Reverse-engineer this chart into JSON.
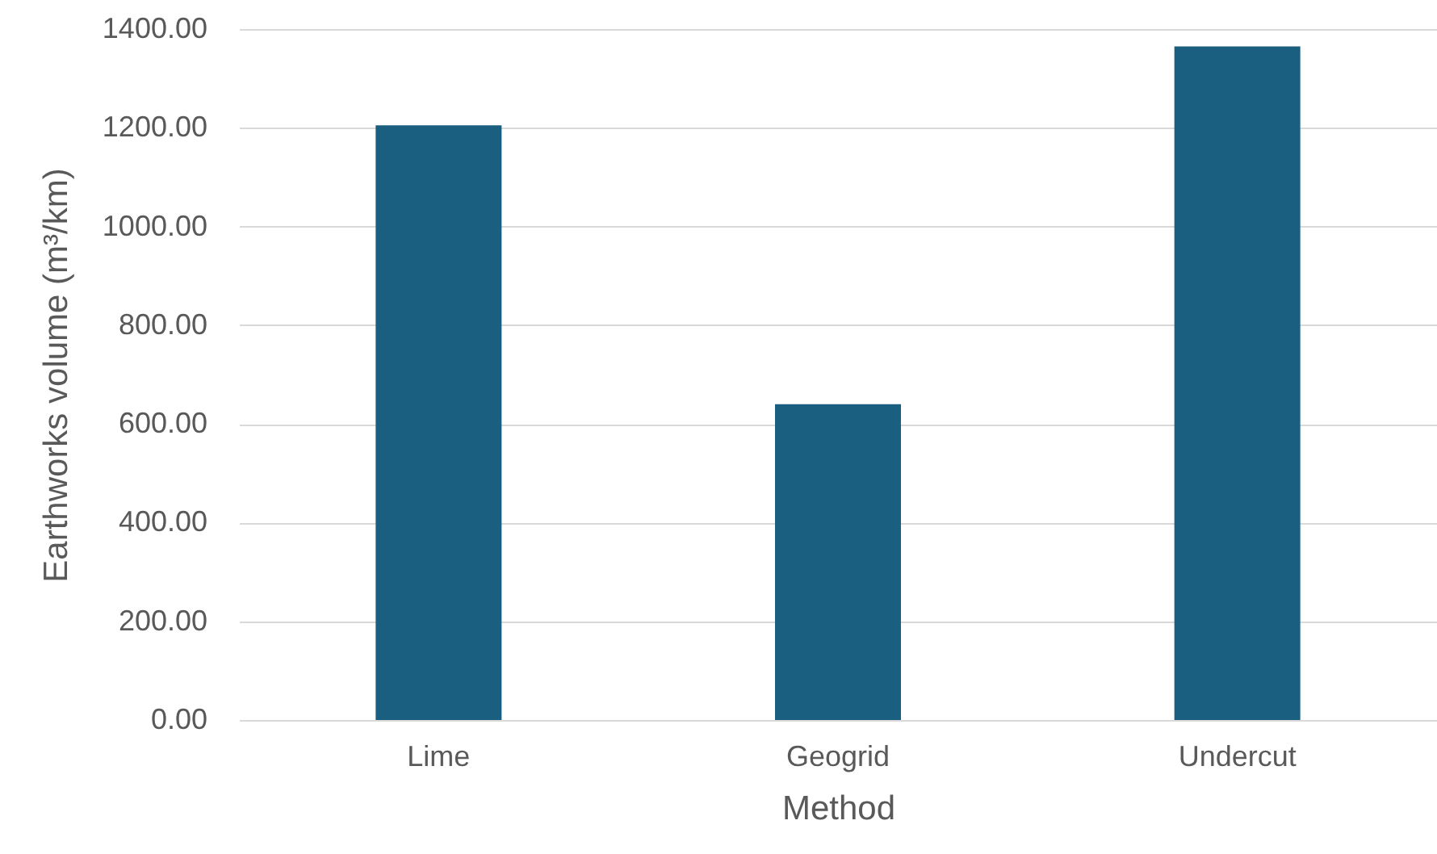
{
  "chart_data": {
    "type": "bar",
    "xlabel": "Method",
    "ylabel": "Earthworks volume (m³/km)",
    "categories": [
      "Lime",
      "Geogrid",
      "Undercut"
    ],
    "values": [
      1205,
      640,
      1365
    ],
    "color": "#1a5f80",
    "ylim": [
      0,
      1400
    ],
    "yticks": [
      {
        "value": 0,
        "label": "0.00"
      },
      {
        "value": 200,
        "label": "200.00"
      },
      {
        "value": 400,
        "label": "400.00"
      },
      {
        "value": 600,
        "label": "600.00"
      },
      {
        "value": 800,
        "label": "800.00"
      },
      {
        "value": 1000,
        "label": "1000.00"
      },
      {
        "value": 1200,
        "label": "1200.00"
      },
      {
        "value": 1400,
        "label": "1400.00"
      }
    ],
    "grid": true
  }
}
